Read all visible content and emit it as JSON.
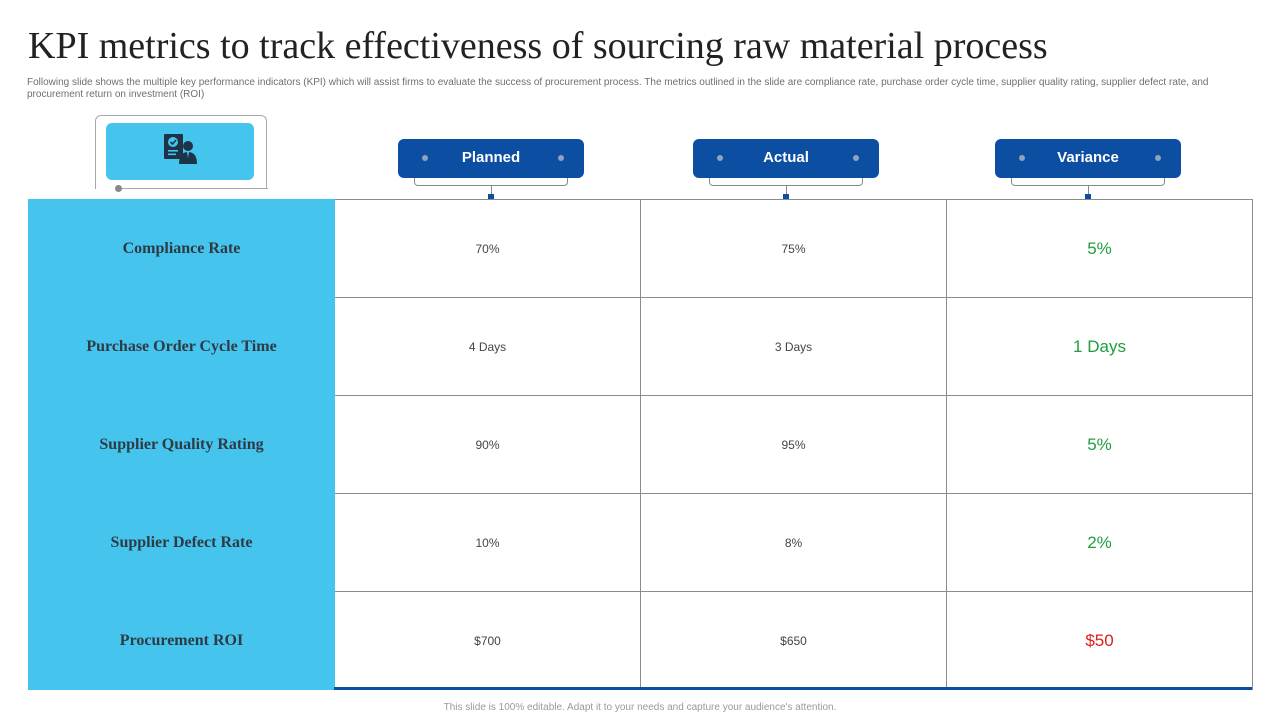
{
  "slide": {
    "title": "KPI metrics to track effectiveness of sourcing raw material process",
    "subtitle": "Following slide shows the multiple key performance indicators (KPI) which will assist firms to evaluate the success of procurement process. The metrics outlined in the slide are compliance rate, purchase order cycle time, supplier quality rating, supplier defect rate, and procurement return on investment (ROI)",
    "footer": "This slide is 100% editable. Adapt it to your needs and capture your audience's attention."
  },
  "header_icon": "document-person-icon",
  "columns": {
    "planned": "Planned",
    "actual": "Actual",
    "variance": "Variance"
  },
  "colors": {
    "accent_cyan": "#45c4ee",
    "brand_blue": "#0b4ea2",
    "positive_green": "#1e9e3e",
    "negative_red": "#e01b1b"
  },
  "rows": [
    {
      "metric": "Compliance Rate",
      "planned": "70%",
      "actual": "75%",
      "variance": "5%",
      "status": "positive"
    },
    {
      "metric": "Purchase Order Cycle Time",
      "planned": "4 Days",
      "actual": "3 Days",
      "variance": "1 Days",
      "status": "positive"
    },
    {
      "metric": "Supplier Quality Rating",
      "planned": "90%",
      "actual": "95%",
      "variance": "5%",
      "status": "positive"
    },
    {
      "metric": "Supplier Defect Rate",
      "planned": "10%",
      "actual": "8%",
      "variance": "2%",
      "status": "positive"
    },
    {
      "metric": "Procurement ROI",
      "planned": "$700",
      "actual": "$650",
      "variance": "$50",
      "status": "negative"
    }
  ]
}
